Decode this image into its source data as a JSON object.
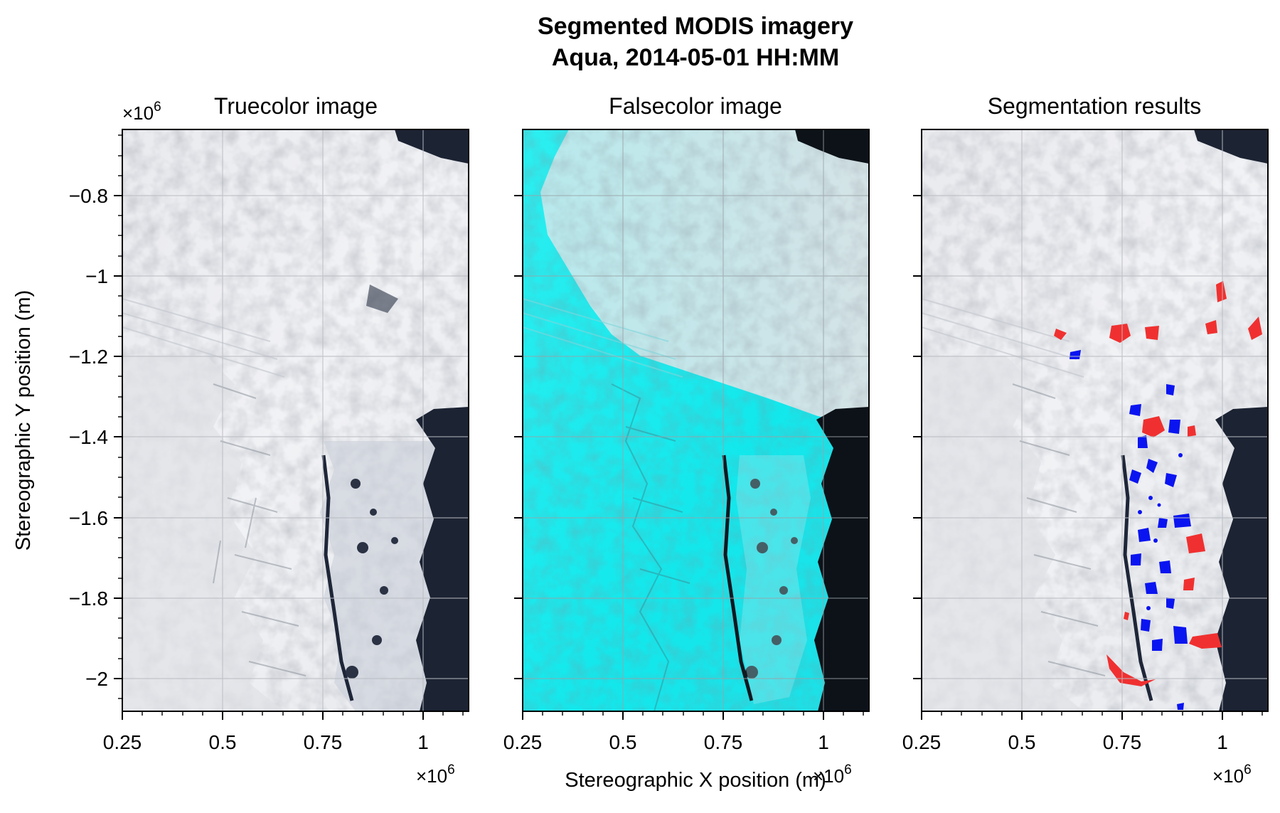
{
  "figure": {
    "title_line1": "Segmented MODIS imagery",
    "title_line2": "Aqua, 2014-05-01 HH:MM"
  },
  "chart_data": [
    {
      "type": "image",
      "title": "Truecolor image",
      "xlabel": "",
      "ylabel": "Stereographic Y position (m)",
      "xlim": [
        250000,
        1115000
      ],
      "ylim": [
        -2085000,
        -640000
      ],
      "xticks": [
        250000,
        500000,
        750000,
        1000000
      ],
      "xtick_labels": [
        "0.25",
        "0.5",
        "0.75",
        "1"
      ],
      "yticks": [
        -800000,
        -1000000,
        -1200000,
        -1400000,
        -1600000,
        -1800000,
        -2000000
      ],
      "ytick_labels": [
        "−0.8",
        "−1",
        "−1.2",
        "−1.4",
        "−1.6",
        "−1.8",
        "−2"
      ],
      "x_offset_label": "×10",
      "x_offset_exp": "6",
      "y_offset_label": "×10",
      "y_offset_exp": "6",
      "grid": true,
      "colors": {
        "land_ice": "#ecedf0",
        "sea_ice": "#d9dde3",
        "open_water": "#1c2333"
      }
    },
    {
      "type": "image",
      "title": "Falsecolor image",
      "xlabel": "Stereographic X position (m)",
      "xlim": [
        250000,
        1115000
      ],
      "ylim": [
        -2085000,
        -640000
      ],
      "xticks": [
        250000,
        500000,
        750000,
        1000000
      ],
      "xtick_labels": [
        "0.25",
        "0.5",
        "0.75",
        "1"
      ],
      "x_offset_label": "×10",
      "x_offset_exp": "6",
      "grid": true,
      "colors": {
        "ice": "#16eaec",
        "cloud": "#ccecee",
        "open_water": "#0c1218"
      }
    },
    {
      "type": "image",
      "title": "Segmentation results",
      "xlim": [
        250000,
        1115000
      ],
      "ylim": [
        -2085000,
        -640000
      ],
      "xticks": [
        250000,
        500000,
        750000,
        1000000
      ],
      "xtick_labels": [
        "0.25",
        "0.5",
        "0.75",
        "1"
      ],
      "x_offset_label": "×10",
      "x_offset_exp": "6",
      "grid": true,
      "colors": {
        "segment_red": "#f03030",
        "segment_blue": "#0a14f0",
        "land_ice": "#ecedf0",
        "open_water": "#1c2333"
      }
    }
  ]
}
